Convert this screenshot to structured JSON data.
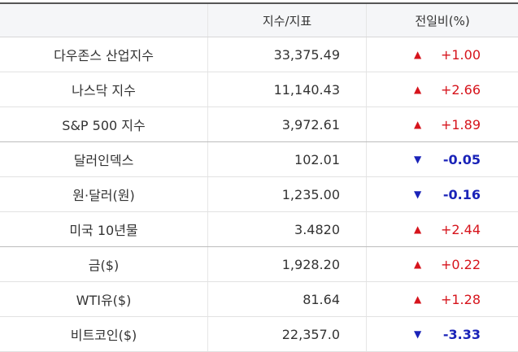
{
  "header": {
    "name": "",
    "value": "지수/지표",
    "change": "전일비(%)"
  },
  "colors": {
    "up": "#d6141c",
    "down": "#1a23b8"
  },
  "rows": [
    {
      "name": "다우존스 산업지수",
      "value": "33,375.49",
      "direction": "up",
      "icon": "triangle-up-icon",
      "change": "+1.00"
    },
    {
      "name": "나스닥 지수",
      "value": "11,140.43",
      "direction": "up",
      "icon": "triangle-up-icon",
      "change": "+2.66"
    },
    {
      "name": "S&P 500 지수",
      "value": "3,972.61",
      "direction": "up",
      "icon": "triangle-up-icon",
      "change": "+1.89"
    },
    {
      "name": "달러인덱스",
      "value": "102.01",
      "direction": "down",
      "icon": "triangle-down-icon",
      "change": "-0.05"
    },
    {
      "name": "원·달러(원)",
      "value": "1,235.00",
      "direction": "down",
      "icon": "triangle-down-icon",
      "change": "-0.16"
    },
    {
      "name": "미국 10년물",
      "value": "3.4820",
      "direction": "up",
      "icon": "triangle-up-icon",
      "change": "+2.44"
    },
    {
      "name": "금($)",
      "value": "1,928.20",
      "direction": "up",
      "icon": "triangle-up-icon",
      "change": "+0.22"
    },
    {
      "name": "WTI유($)",
      "value": "81.64",
      "direction": "up",
      "icon": "triangle-up-icon",
      "change": "+1.28"
    },
    {
      "name": "비트코인($)",
      "value": "22,357.0",
      "direction": "down",
      "icon": "triangle-down-icon",
      "change": "-3.33"
    }
  ]
}
